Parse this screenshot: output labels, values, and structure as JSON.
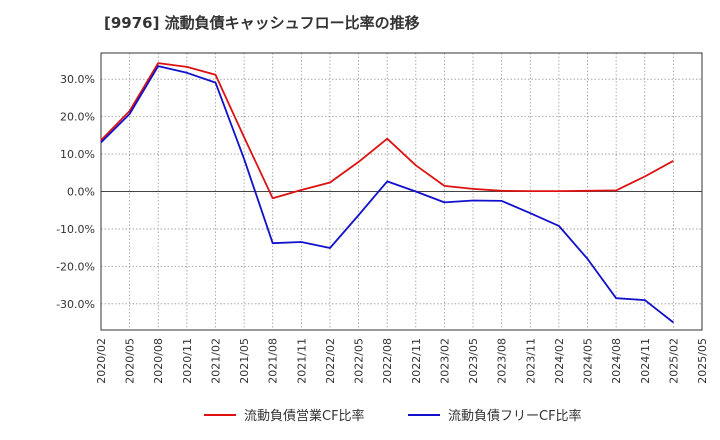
{
  "chart_data": {
    "type": "line",
    "title": "[9976]  流動負債キャッシュフロー比率の推移",
    "xlabel": "",
    "ylabel": "",
    "ylim": [
      -37,
      37
    ],
    "yticks": [
      30,
      20,
      10,
      0,
      -10,
      -20,
      -30
    ],
    "ytick_labels": [
      "30.0%",
      "20.0%",
      "10.0%",
      "0.0%",
      "-10.0%",
      "-20.0%",
      "-30.0%"
    ],
    "grid": true,
    "legend_position": "bottom",
    "categories": [
      "2020/02",
      "2020/05",
      "2020/08",
      "2020/11",
      "2021/02",
      "2021/05",
      "2021/08",
      "2021/11",
      "2022/02",
      "2022/05",
      "2022/08",
      "2022/11",
      "2023/02",
      "2023/05",
      "2023/08",
      "2023/11",
      "2024/02",
      "2024/05",
      "2024/08",
      "2024/11",
      "2025/02",
      "2025/05"
    ],
    "series": [
      {
        "name": "流動負債営業CF比率",
        "color": "#dd1111",
        "values": [
          13.7,
          21.5,
          34.3,
          33.3,
          31.2,
          14.5,
          -1.8,
          0.4,
          2.4,
          7.9,
          14.1,
          7.0,
          1.5,
          0.7,
          0.2,
          0.1,
          0.1,
          0.2,
          0.3,
          4.0,
          8.2,
          null
        ]
      },
      {
        "name": "流動負債フリーCF比率",
        "color": "#1111cc",
        "values": [
          13.1,
          20.7,
          33.5,
          31.7,
          29.1,
          8.7,
          -13.8,
          -13.5,
          -15.1,
          -6.3,
          2.7,
          0.0,
          -2.9,
          -2.4,
          -2.5,
          -5.8,
          -9.2,
          -18.0,
          -28.5,
          -29.0,
          -35.0,
          null
        ]
      }
    ]
  }
}
